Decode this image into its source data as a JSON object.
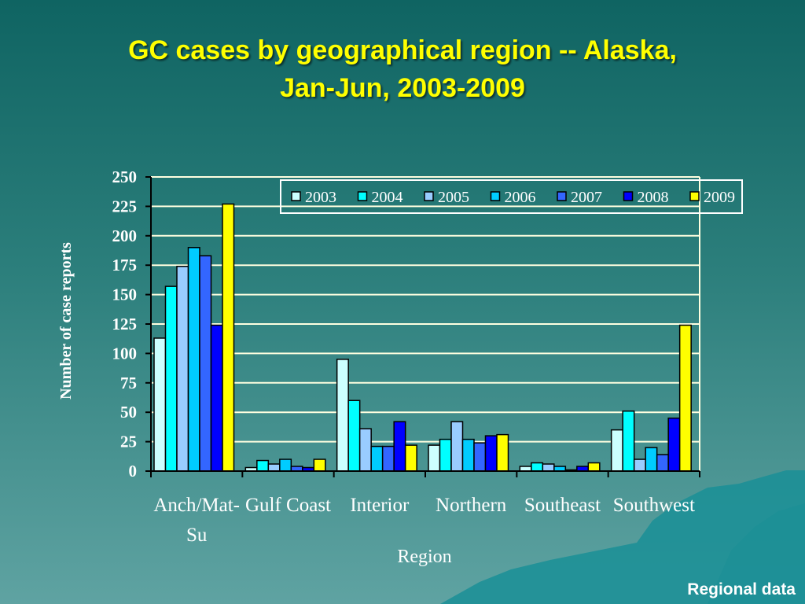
{
  "slide": {
    "title_line1": "GC cases by geographical region -- Alaska,",
    "title_line2": "Jan-Jun, 2003-2009",
    "footer": "Regional data"
  },
  "colors": {
    "background_top": "#0f6462",
    "background_bottom": "#5fa3a2",
    "title": "#ffff00",
    "grid": "#ffffe0",
    "axis_text": "#ffffff",
    "mountain": "#1a8f96"
  },
  "chart_data": {
    "type": "bar",
    "title": "",
    "xlabel": "Region",
    "ylabel": "Number of case reports",
    "ylim": [
      0,
      250
    ],
    "yticks": [
      0,
      25,
      50,
      75,
      100,
      125,
      150,
      175,
      200,
      225,
      250
    ],
    "grid": true,
    "legend_position": "top-right",
    "categories": [
      "Anch/Mat-Su",
      "Gulf Coast",
      "Interior",
      "Northern",
      "Southeast",
      "Southwest"
    ],
    "series": [
      {
        "name": "2003",
        "color": "#ccffff",
        "values": [
          113,
          3,
          95,
          22,
          4,
          35
        ]
      },
      {
        "name": "2004",
        "color": "#00ffff",
        "values": [
          157,
          9,
          60,
          27,
          7,
          51
        ]
      },
      {
        "name": "2005",
        "color": "#99ccff",
        "values": [
          174,
          6,
          36,
          42,
          6,
          10
        ]
      },
      {
        "name": "2006",
        "color": "#00ccff",
        "values": [
          190,
          10,
          21,
          27,
          4,
          20
        ]
      },
      {
        "name": "2007",
        "color": "#3366ff",
        "values": [
          183,
          4,
          21,
          24,
          1,
          14
        ]
      },
      {
        "name": "2008",
        "color": "#0000ff",
        "values": [
          124,
          3,
          42,
          30,
          4,
          45
        ]
      },
      {
        "name": "2009",
        "color": "#ffff00",
        "values": [
          227,
          10,
          22,
          31,
          7,
          124
        ]
      }
    ]
  }
}
